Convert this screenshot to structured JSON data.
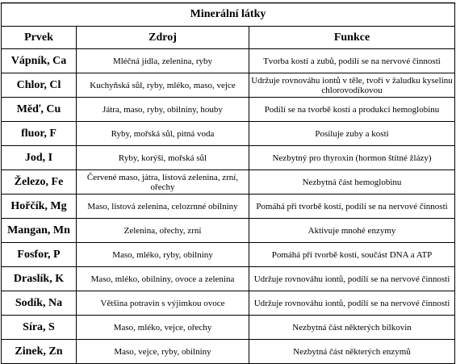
{
  "table": {
    "title": "Minerální látky",
    "headers": [
      "Prvek",
      "Zdroj",
      "Funkce"
    ],
    "rows": [
      {
        "name": "Vápník, Ca",
        "source": "Mléčná jídla, zelenina, ryby",
        "function": "Tvorba kostí a zubů, podílí se na nervové činnosti"
      },
      {
        "name": "Chlor, Cl",
        "source": "Kuchyňská sůl, ryby, mléko, maso, vejce",
        "function": "Udržuje rovnováhu iontů v těle, tvoří v žaludku kyselinu chlorovodíkovou"
      },
      {
        "name": "Měď, Cu",
        "source": "Játra, maso, ryby, obilniny, houby",
        "function": "Podílí se na tvorbě kostí a produkci hemoglobinu"
      },
      {
        "name": "fluor, F",
        "source": "Ryby, mořská sůl, pitná voda",
        "function": "Posiluje zuby a kosti"
      },
      {
        "name": "Jod, I",
        "source": "Ryby, korýši, mořská sůl",
        "function": "Nezbytný pro thyroxin (hormon štítné žlázy)"
      },
      {
        "name": "Železo, Fe",
        "source": "Červené maso, játra, listová zelenina, zrní, ořechy",
        "function": "Nezbytná část hemoglobinu"
      },
      {
        "name": "Hořčík, Mg",
        "source": "Maso, listová zelenina, celozrnné obilniny",
        "function": "Pomáhá při tvorbě kostí, podílí se na nervové činnosti"
      },
      {
        "name": "Mangan, Mn",
        "source": "Zelenina, ořechy, zrní",
        "function": "Aktivuje mnohé enzymy"
      },
      {
        "name": "Fosfor, P",
        "source": "Maso, mléko, ryby, obilniny",
        "function": "Pomáhá při tvorbě kostí, součást DNA a ATP"
      },
      {
        "name": "Draslík, K",
        "source": "Maso, mléko, obilniny, ovoce a zelenina",
        "function": "Udržuje rovnováhu iontů, podílí se na nervové činnosti"
      },
      {
        "name": "Sodík, Na",
        "source": "Většina potravin s výjimkou ovoce",
        "function": "Udržuje rovnováhu iontů, podílí se na nervové činnosti"
      },
      {
        "name": "Síra, S",
        "source": "Maso, mléko, vejce, ořechy",
        "function": "Nezbytná část některých bílkovin"
      },
      {
        "name": "Zinek, Zn",
        "source": "Maso, vejce, ryby, obilniny",
        "function": "Nezbytná část některých enzymů"
      }
    ]
  }
}
